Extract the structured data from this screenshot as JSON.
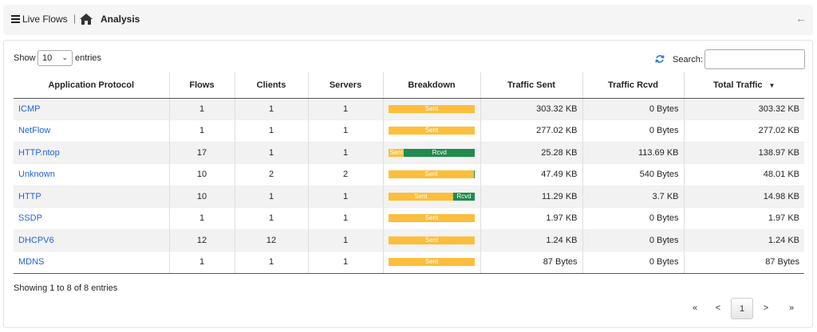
{
  "header": {
    "crumb_live_flows": "Live Flows",
    "separator": "|",
    "crumb_current": "Analysis"
  },
  "controls": {
    "show_label": "Show",
    "page_length": "10",
    "entries_label": "entries",
    "search_label": "Search:",
    "search_value": ""
  },
  "table": {
    "columns": [
      "Application Protocol",
      "Flows",
      "Clients",
      "Servers",
      "Breakdown",
      "Traffic Sent",
      "Traffic Rcvd",
      "Total Traffic"
    ],
    "sorted_column": "Total Traffic",
    "sort_direction": "desc",
    "rows": [
      {
        "protocol": "ICMP",
        "flows": "1",
        "clients": "1",
        "servers": "1",
        "sent_pct": 100,
        "sent_label": "Sent",
        "rcvd_label": "",
        "traffic_sent": "303.32 KB",
        "traffic_rcvd": "0 Bytes",
        "total": "303.32 KB"
      },
      {
        "protocol": "NetFlow",
        "flows": "1",
        "clients": "1",
        "servers": "1",
        "sent_pct": 100,
        "sent_label": "Sent",
        "rcvd_label": "",
        "traffic_sent": "277.02 KB",
        "traffic_rcvd": "0 Bytes",
        "total": "277.02 KB"
      },
      {
        "protocol": "HTTP.ntop",
        "flows": "17",
        "clients": "1",
        "servers": "1",
        "sent_pct": 18,
        "sent_label": "Sent",
        "rcvd_label": "Rcvd",
        "traffic_sent": "25.28 KB",
        "traffic_rcvd": "113.69 KB",
        "total": "138.97 KB"
      },
      {
        "protocol": "Unknown",
        "flows": "10",
        "clients": "2",
        "servers": "2",
        "sent_pct": 99,
        "sent_label": "Sent",
        "rcvd_label": "",
        "traffic_sent": "47.49 KB",
        "traffic_rcvd": "540 Bytes",
        "total": "48.01 KB"
      },
      {
        "protocol": "HTTP",
        "flows": "10",
        "clients": "1",
        "servers": "1",
        "sent_pct": 75,
        "sent_label": "Sent",
        "rcvd_label": "Rcvd",
        "traffic_sent": "11.29 KB",
        "traffic_rcvd": "3.7 KB",
        "total": "14.98 KB"
      },
      {
        "protocol": "SSDP",
        "flows": "1",
        "clients": "1",
        "servers": "1",
        "sent_pct": 100,
        "sent_label": "Sent",
        "rcvd_label": "",
        "traffic_sent": "1.97 KB",
        "traffic_rcvd": "0 Bytes",
        "total": "1.97 KB"
      },
      {
        "protocol": "DHCPV6",
        "flows": "12",
        "clients": "12",
        "servers": "1",
        "sent_pct": 100,
        "sent_label": "Sent",
        "rcvd_label": "",
        "traffic_sent": "1.24 KB",
        "traffic_rcvd": "0 Bytes",
        "total": "1.24 KB"
      },
      {
        "protocol": "MDNS",
        "flows": "1",
        "clients": "1",
        "servers": "1",
        "sent_pct": 100,
        "sent_label": "Sent",
        "rcvd_label": "",
        "traffic_sent": "87 Bytes",
        "traffic_rcvd": "0 Bytes",
        "total": "87 Bytes"
      }
    ]
  },
  "footer": {
    "info": "Showing 1 to 8 of 8 entries",
    "pagination": {
      "first": "«",
      "prev": "<",
      "current": "1",
      "next": ">",
      "last": "»"
    }
  },
  "colors": {
    "link": "#1f63d5",
    "sent_bar": "#fcbe3b",
    "rcvd_bar": "#208b4c",
    "refresh_icon": "#2e7bd6"
  },
  "icons": {
    "menu": "hamburger-icon",
    "home": "home-icon",
    "back": "arrow-left-icon",
    "refresh": "refresh-icon",
    "select_caret": "chevron-down-icon"
  }
}
